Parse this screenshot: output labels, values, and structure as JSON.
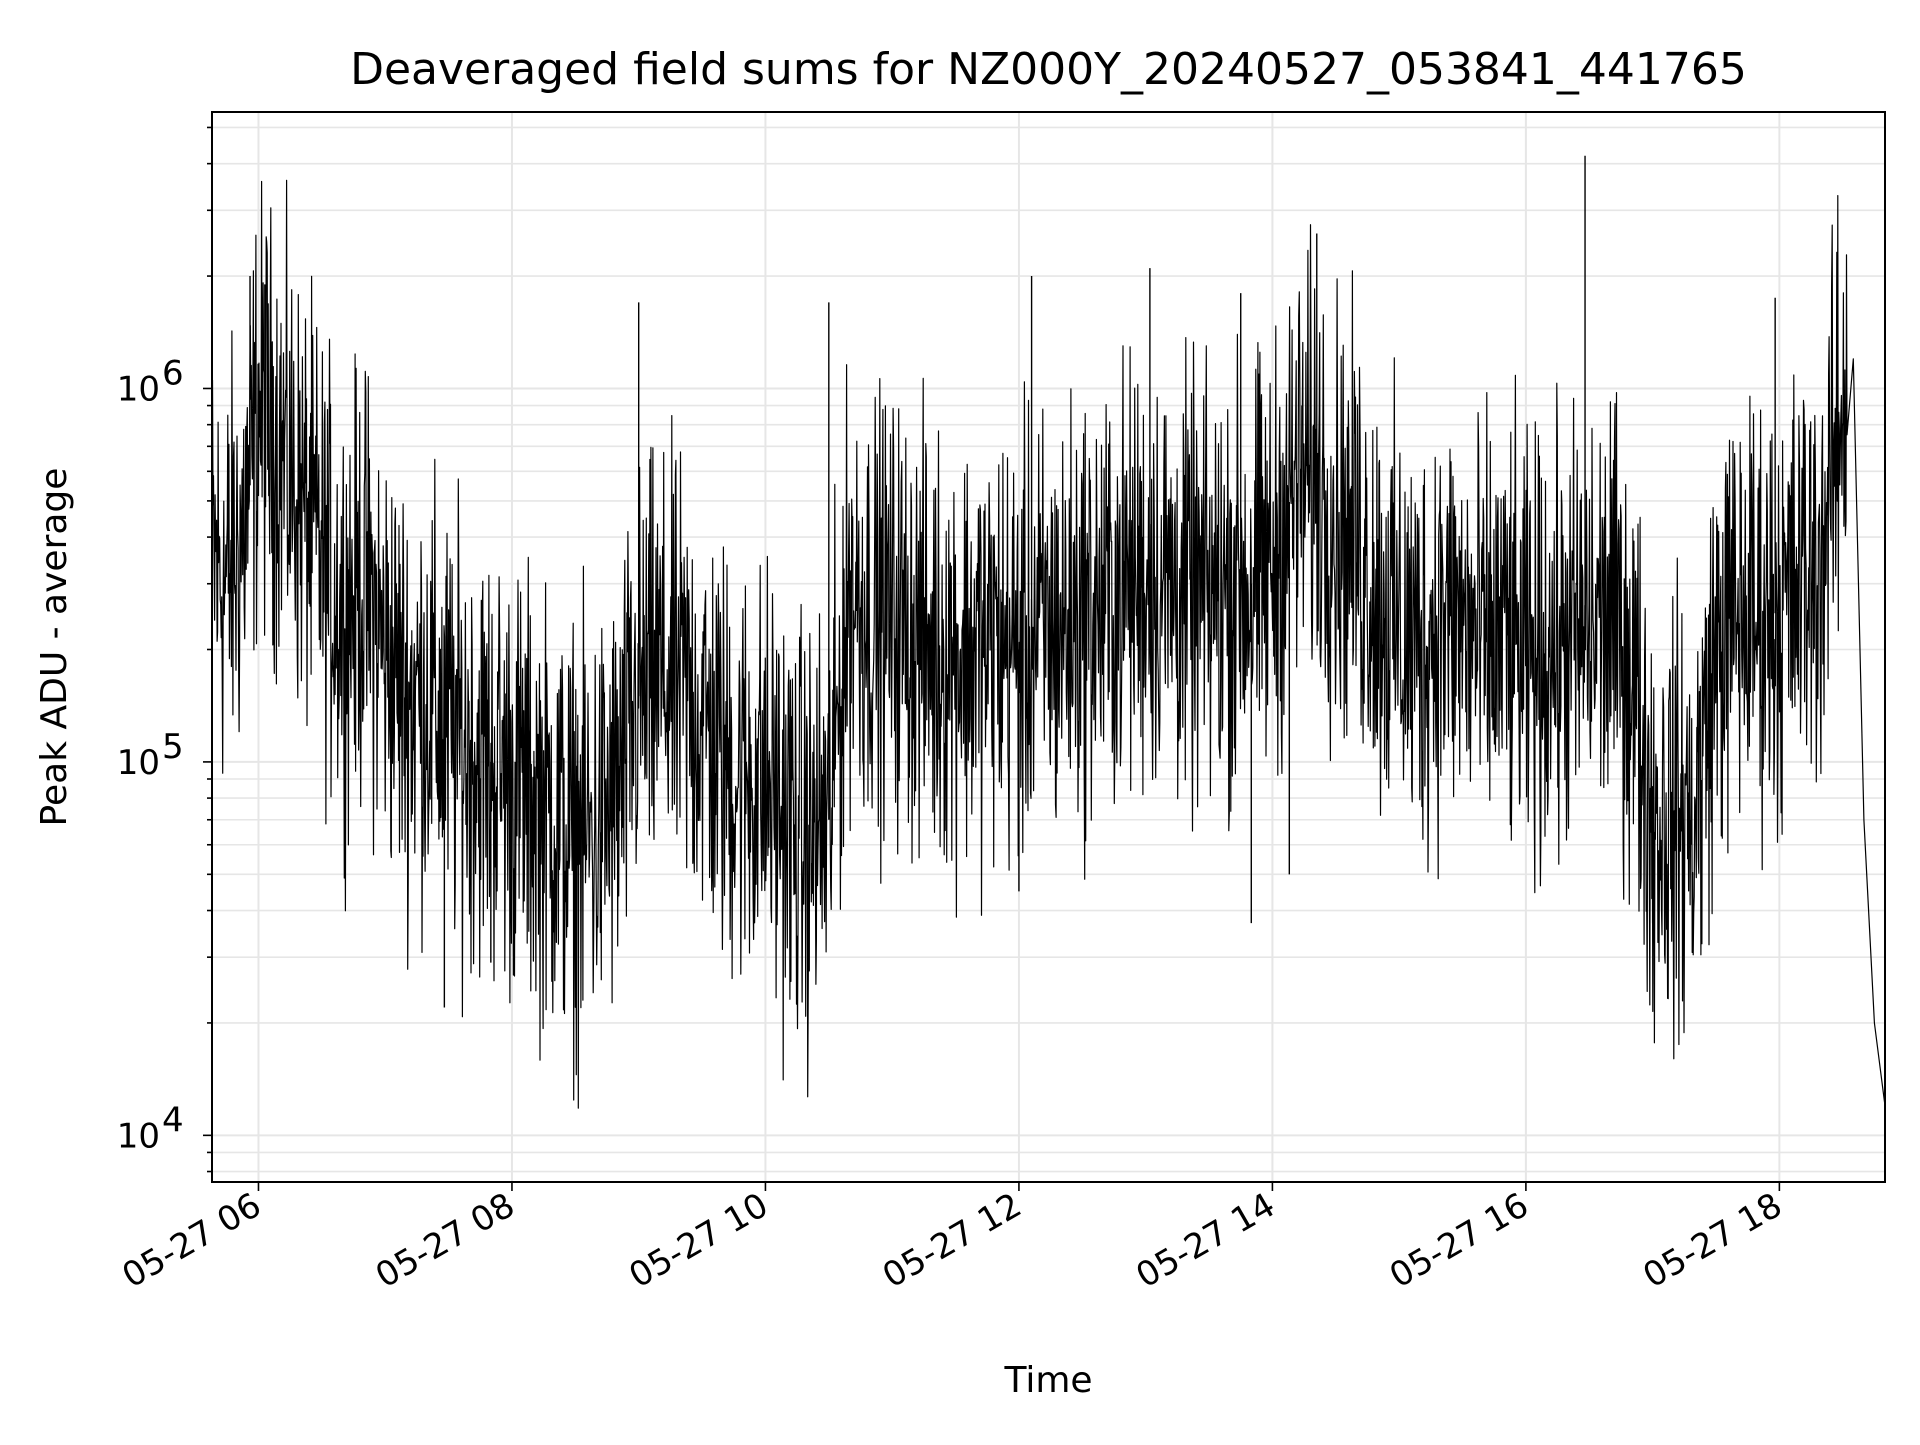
{
  "chart_data": {
    "type": "line",
    "title": "Deaveraged field sums for NZ000Y_20240527_053841_441765",
    "xlabel": "Time",
    "ylabel": "Peak ADU - average",
    "yscale": "log",
    "grid": true,
    "legend": "none",
    "xlim": [
      "2024-05-27 05:38",
      "2024-05-27 18:50"
    ],
    "ylim": [
      7500,
      5500000
    ],
    "x_ticks": [
      "05-27 06",
      "05-27 08",
      "05-27 10",
      "05-27 12",
      "05-27 14",
      "05-27 16",
      "05-27 18"
    ],
    "y_ticks": [
      {
        "value": 10000,
        "base": "10",
        "exp": "4"
      },
      {
        "value": 100000,
        "base": "10",
        "exp": "5"
      },
      {
        "value": 1000000,
        "base": "10",
        "exp": "6"
      }
    ],
    "line_color": "#000000",
    "grid_color": "#e6e6e6",
    "series": [
      {
        "x": [
          "2024-05-27 05:38",
          "2024-05-27 05:45",
          "2024-05-27 05:52",
          "2024-05-27 05:56",
          "2024-05-27 06:00",
          "2024-05-27 06:10",
          "2024-05-27 06:20",
          "2024-05-27 06:30",
          "2024-05-27 06:40",
          "2024-05-27 06:50",
          "2024-05-27 07:00",
          "2024-05-27 07:10",
          "2024-05-27 07:20",
          "2024-05-27 07:30",
          "2024-05-27 07:40",
          "2024-05-27 07:50",
          "2024-05-27 08:00",
          "2024-05-27 08:10",
          "2024-05-27 08:20",
          "2024-05-27 08:30",
          "2024-05-27 08:40",
          "2024-05-27 08:50",
          "2024-05-27 09:00",
          "2024-05-27 09:10",
          "2024-05-27 09:20",
          "2024-05-27 09:30",
          "2024-05-27 09:40",
          "2024-05-27 09:50",
          "2024-05-27 10:00",
          "2024-05-27 10:10",
          "2024-05-27 10:20",
          "2024-05-27 10:30",
          "2024-05-27 10:40",
          "2024-05-27 10:50",
          "2024-05-27 11:00",
          "2024-05-27 11:10",
          "2024-05-27 11:20",
          "2024-05-27 11:30",
          "2024-05-27 11:40",
          "2024-05-27 11:50",
          "2024-05-27 12:00",
          "2024-05-27 12:10",
          "2024-05-27 12:20",
          "2024-05-27 12:30",
          "2024-05-27 12:40",
          "2024-05-27 12:50",
          "2024-05-27 13:00",
          "2024-05-27 13:10",
          "2024-05-27 13:20",
          "2024-05-27 13:30",
          "2024-05-27 13:40",
          "2024-05-27 13:50",
          "2024-05-27 14:00",
          "2024-05-27 14:10",
          "2024-05-27 14:20",
          "2024-05-27 14:30",
          "2024-05-27 14:40",
          "2024-05-27 14:50",
          "2024-05-27 15:00",
          "2024-05-27 15:10",
          "2024-05-27 15:20",
          "2024-05-27 15:30",
          "2024-05-27 15:40",
          "2024-05-27 15:50",
          "2024-05-27 16:00",
          "2024-05-27 16:10",
          "2024-05-27 16:20",
          "2024-05-27 16:30",
          "2024-05-27 16:40",
          "2024-05-27 16:50",
          "2024-05-27 17:00",
          "2024-05-27 17:10",
          "2024-05-27 17:20",
          "2024-05-27 17:30",
          "2024-05-27 17:40",
          "2024-05-27 17:50",
          "2024-05-27 18:00",
          "2024-05-27 18:10",
          "2024-05-27 18:20",
          "2024-05-27 18:30",
          "2024-05-27 18:35",
          "2024-05-27 18:40",
          "2024-05-27 18:45",
          "2024-05-27 18:50"
        ],
        "y": [
          350000,
          300000,
          400000,
          550000,
          900000,
          700000,
          500000,
          350000,
          250000,
          300000,
          200000,
          150000,
          150000,
          120000,
          110000,
          100000,
          90000,
          80000,
          70000,
          60000,
          65000,
          80000,
          150000,
          170000,
          160000,
          130000,
          100000,
          90000,
          90000,
          70000,
          60000,
          70000,
          300000,
          250000,
          250000,
          220000,
          200000,
          200000,
          200000,
          210000,
          200000,
          220000,
          230000,
          250000,
          260000,
          300000,
          320000,
          300000,
          280000,
          270000,
          300000,
          300000,
          330000,
          550000,
          600000,
          450000,
          380000,
          280000,
          220000,
          200000,
          250000,
          230000,
          200000,
          220000,
          180000,
          200000,
          210000,
          220000,
          250000,
          180000,
          70000,
          70000,
          70000,
          200000,
          250000,
          250000,
          250000,
          300000,
          350000,
          900000,
          1200000,
          70000,
          20000,
          12000
        ]
      }
    ],
    "spikes": [
      {
        "x": "2024-05-27 05:56",
        "y": 2000000
      },
      {
        "x": "2024-05-27 06:03",
        "y": 1900000
      },
      {
        "x": "2024-05-27 07:28",
        "y": 22000
      },
      {
        "x": "2024-05-27 07:50",
        "y": 29000
      },
      {
        "x": "2024-05-27 09:00",
        "y": 1700000
      },
      {
        "x": "2024-05-27 10:30",
        "y": 1700000
      },
      {
        "x": "2024-05-27 12:06",
        "y": 2000000
      },
      {
        "x": "2024-05-27 12:00",
        "y": 45000
      },
      {
        "x": "2024-05-27 13:02",
        "y": 2100000
      },
      {
        "x": "2024-05-27 13:45",
        "y": 1800000
      },
      {
        "x": "2024-05-27 13:50",
        "y": 37000
      },
      {
        "x": "2024-05-27 14:21",
        "y": 2600000
      },
      {
        "x": "2024-05-27 14:08",
        "y": 50000
      },
      {
        "x": "2024-05-27 16:28",
        "y": 4200000
      },
      {
        "x": "2024-05-27 17:00",
        "y": 37000
      },
      {
        "x": "2024-05-27 17:58",
        "y": 1750000
      }
    ]
  }
}
